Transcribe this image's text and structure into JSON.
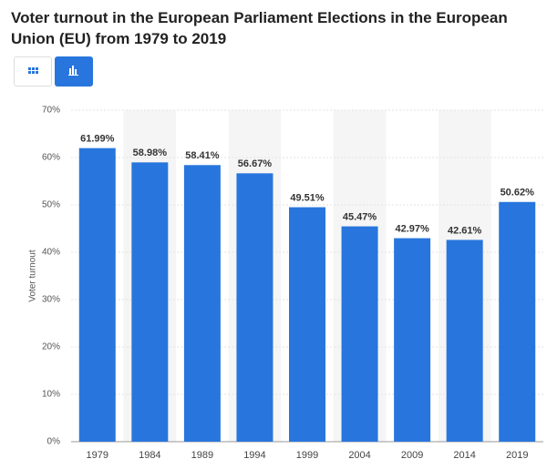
{
  "chart_data": {
    "type": "bar",
    "title": "Voter turnout in the European Parliament Elections in the European Union (EU) from 1979 to 2019",
    "y_label": "Voter turnout",
    "categories": [
      "1979",
      "1984",
      "1989",
      "1994",
      "1999",
      "2004",
      "2009",
      "2014",
      "2019"
    ],
    "values": [
      61.99,
      58.98,
      58.41,
      56.67,
      49.51,
      45.47,
      42.97,
      42.61,
      50.62
    ],
    "value_labels": [
      "61.99%",
      "58.98%",
      "58.41%",
      "56.67%",
      "49.51%",
      "45.47%",
      "42.97%",
      "42.61%",
      "50.62%"
    ],
    "color": "#2876dd",
    "ylim": [
      0,
      70
    ],
    "yticks": [
      {
        "value": 0,
        "label": "0%"
      },
      {
        "value": 10,
        "label": "10%"
      },
      {
        "value": 20,
        "label": "20%"
      },
      {
        "value": 30,
        "label": "30%"
      },
      {
        "value": 40,
        "label": "40%"
      },
      {
        "value": 50,
        "label": "50%"
      },
      {
        "value": 60,
        "label": "60%"
      },
      {
        "value": 70,
        "label": "70%"
      }
    ],
    "grid": true
  }
}
